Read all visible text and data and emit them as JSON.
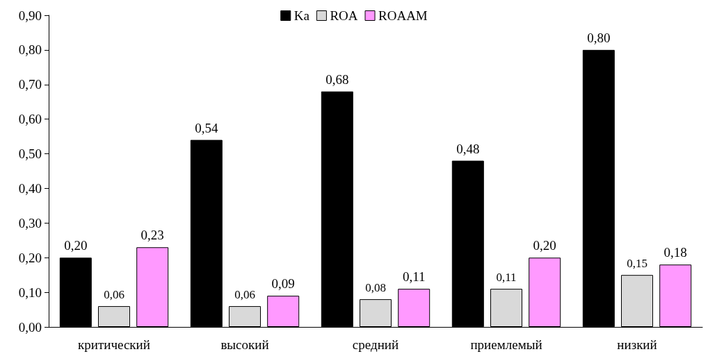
{
  "chart_data": {
    "type": "bar",
    "categories": [
      "критический",
      "высокий",
      "средний",
      "приемлемый",
      "низкий"
    ],
    "series": [
      {
        "name": "Ka",
        "color": "#000000",
        "values": [
          0.2,
          0.54,
          0.68,
          0.48,
          0.8
        ],
        "value_labels": [
          "0,20",
          "0,54",
          "0,68",
          "0,48",
          "0,80"
        ]
      },
      {
        "name": "ROA",
        "color": "#d9d9d9",
        "values": [
          0.06,
          0.06,
          0.08,
          0.11,
          0.15
        ],
        "value_labels": [
          "0,06",
          "0,06",
          "0,08",
          "0,11",
          "0,15"
        ]
      },
      {
        "name": "ROAAM",
        "color": "#ff99ff",
        "values": [
          0.23,
          0.09,
          0.11,
          0.2,
          0.18
        ],
        "value_labels": [
          "0,23",
          "0,09",
          "0,11",
          "0,20",
          "0,18"
        ]
      }
    ],
    "ylim": [
      0,
      0.9
    ],
    "yticks": [
      {
        "value": 0,
        "label": "0,00"
      },
      {
        "value": 0.1,
        "label": "0,10"
      },
      {
        "value": 0.2,
        "label": "0,20"
      },
      {
        "value": 0.3,
        "label": "0,30"
      },
      {
        "value": 0.4,
        "label": "0,40"
      },
      {
        "value": 0.5,
        "label": "0,50"
      },
      {
        "value": 0.6,
        "label": "0,60"
      },
      {
        "value": 0.7,
        "label": "0,70"
      },
      {
        "value": 0.8,
        "label": "0,80"
      },
      {
        "value": 0.9,
        "label": "0,90"
      }
    ],
    "grid": false,
    "legend": "top"
  }
}
